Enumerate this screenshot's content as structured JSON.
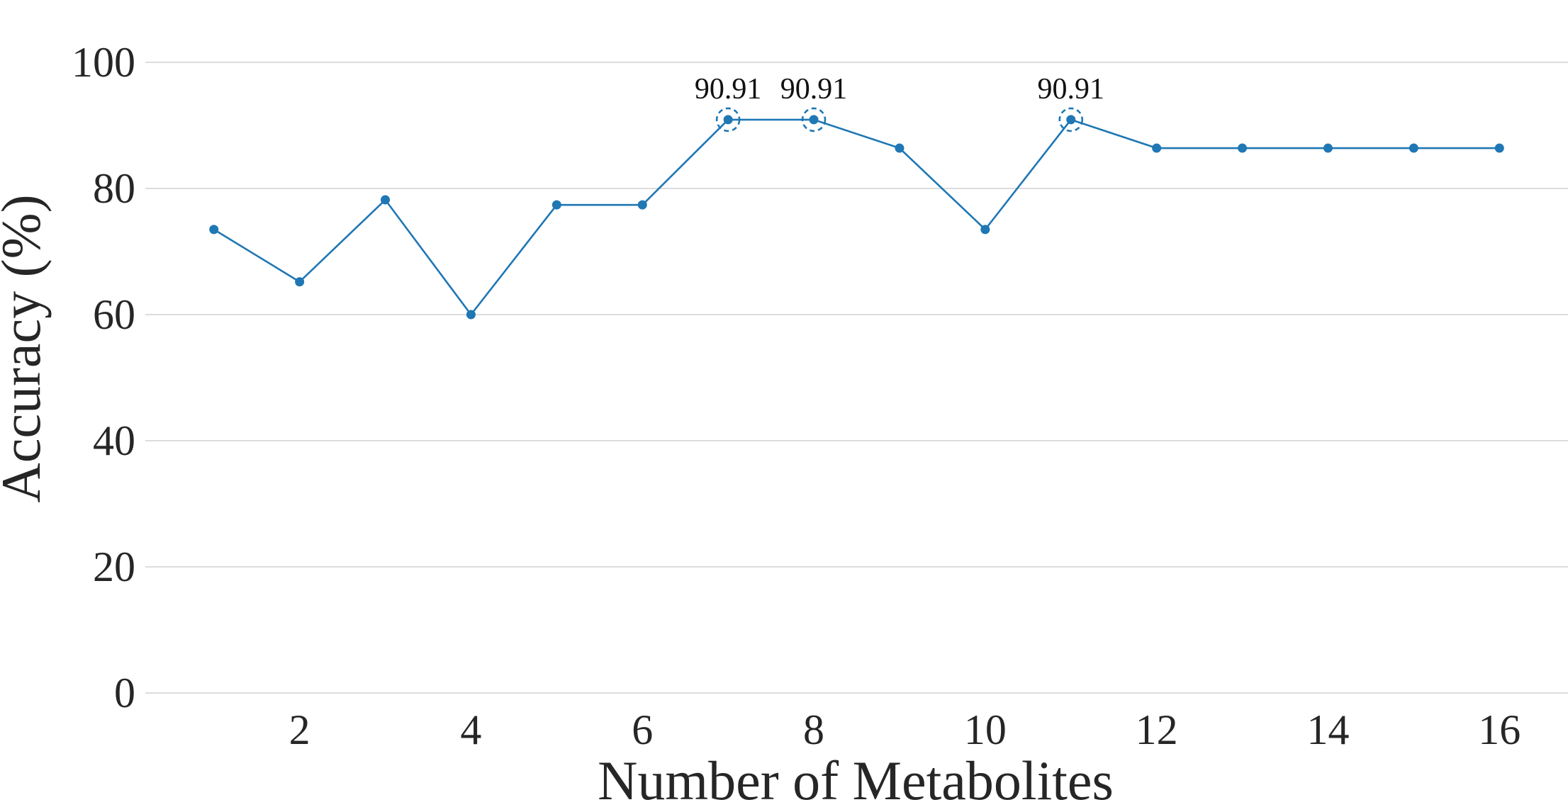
{
  "chart_data": {
    "type": "line",
    "xlabel": "Number of Metabolites",
    "ylabel": "Accuracy (%)",
    "ylim": [
      0,
      100
    ],
    "xlim": [
      0.2,
      16.8
    ],
    "yticks": [
      "0",
      "20",
      "40",
      "60",
      "80",
      "100"
    ],
    "xticks": [
      "2",
      "4",
      "6",
      "8",
      "10",
      "12",
      "14",
      "16"
    ],
    "grid": "horizontal",
    "series": [
      {
        "x": [
          1,
          2,
          3,
          4,
          5,
          6,
          7,
          8,
          9,
          10,
          11,
          12,
          13,
          14,
          15,
          16
        ],
        "values": [
          73.5,
          65.2,
          78.2,
          60.0,
          77.4,
          77.4,
          90.91,
          90.91,
          86.4,
          73.5,
          90.91,
          86.4,
          86.4,
          86.4,
          86.4,
          86.4
        ],
        "color": "#1f77b4"
      }
    ],
    "annotations": [
      {
        "x": 7,
        "y": 90.91,
        "text": "90.91"
      },
      {
        "x": 8,
        "y": 90.91,
        "text": "90.91"
      },
      {
        "x": 11,
        "y": 90.91,
        "text": "90.91"
      }
    ]
  }
}
